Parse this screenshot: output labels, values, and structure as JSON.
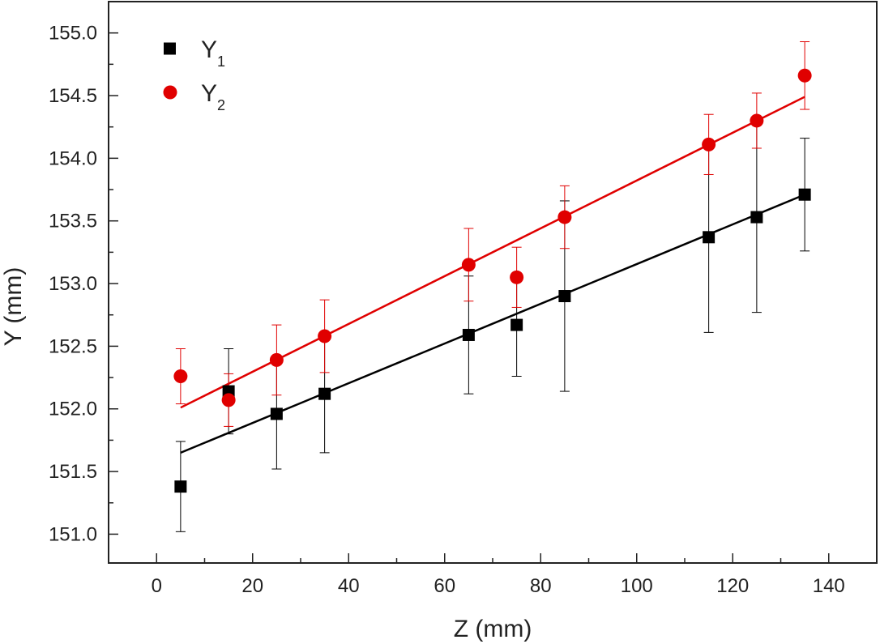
{
  "chart_data": {
    "type": "scatter",
    "xlabel": "Z (mm)",
    "ylabel": "Y (mm)",
    "xlim": [
      -10,
      150
    ],
    "ylim": [
      150.77,
      155.25
    ],
    "xticks": [
      0,
      20,
      40,
      60,
      80,
      100,
      120,
      140
    ],
    "xtick_labels": [
      "0",
      "20",
      "40",
      "60",
      "80",
      "100",
      "120",
      "140"
    ],
    "yticks": [
      151.0,
      151.5,
      152.0,
      152.5,
      153.0,
      153.5,
      154.0,
      154.5,
      155.0
    ],
    "ytick_labels": [
      "151.0",
      "151.5",
      "152.0",
      "152.5",
      "153.0",
      "153.5",
      "154.0",
      "154.5",
      "155.0"
    ],
    "grid": false,
    "legend_position": "top-left",
    "series": [
      {
        "name": "Y",
        "subscript": "1",
        "marker": "square",
        "color": "#000000",
        "x": [
          5,
          15,
          25,
          35,
          65,
          75,
          85,
          115,
          125,
          135
        ],
        "y": [
          151.38,
          152.14,
          151.96,
          152.12,
          152.59,
          152.67,
          152.9,
          153.37,
          153.53,
          153.71
        ],
        "yerr": [
          0.36,
          0.34,
          0.44,
          0.47,
          0.47,
          0.41,
          0.76,
          0.76,
          0.76,
          0.45
        ],
        "fit": {
          "x": [
            5,
            135
          ],
          "y": [
            151.65,
            153.71
          ]
        }
      },
      {
        "name": "Y",
        "subscript": "2",
        "marker": "circle",
        "color": "#e00000",
        "x": [
          5,
          15,
          25,
          35,
          65,
          75,
          85,
          115,
          125,
          135
        ],
        "y": [
          152.26,
          152.07,
          152.39,
          152.58,
          153.15,
          153.05,
          153.53,
          154.11,
          154.3,
          154.66
        ],
        "yerr": [
          0.22,
          0.21,
          0.28,
          0.29,
          0.29,
          0.24,
          0.25,
          0.24,
          0.22,
          0.27
        ],
        "fit": {
          "x": [
            5,
            135
          ],
          "y": [
            152.01,
            154.49
          ]
        }
      }
    ]
  }
}
